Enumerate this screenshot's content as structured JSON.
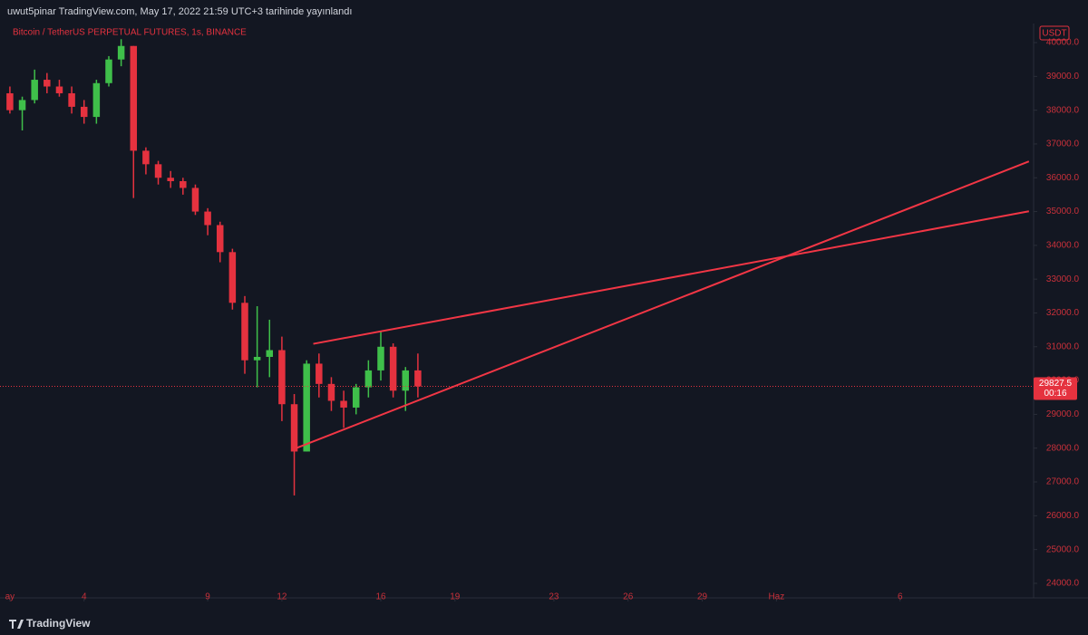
{
  "header": {
    "title": "uwut5pinar TradingView.com, May 17, 2022 21:59 UTC+3 tarihinde yayınlandı"
  },
  "footer": {
    "brand": "TradingView"
  },
  "chart_data": {
    "type": "candlestick",
    "title": "Bitcoin / TetherUS PERPETUAL FUTURES, 1s, BINANCE",
    "currency": "USDT",
    "countdown": "00:16",
    "x": [
      1,
      1.5,
      2,
      2.5,
      3,
      3.5,
      4,
      4.5,
      5,
      5.5,
      6,
      6.5,
      7,
      7.5,
      8,
      8.5,
      9,
      9.5,
      10,
      10.5,
      11,
      11.5,
      12,
      12.5,
      13,
      13.5,
      14,
      14.5,
      15,
      15.5,
      16,
      16.5,
      17,
      17.5
    ],
    "open": [
      38500,
      38000,
      38300,
      38900,
      38700,
      38500,
      38100,
      37800,
      38800,
      39500,
      39900,
      36800,
      36400,
      36000,
      35900,
      35700,
      35000,
      34600,
      33800,
      32300,
      30600,
      30700,
      30900,
      29300,
      27900,
      30500,
      29900,
      29400,
      29200,
      29800,
      30300,
      31000,
      29700,
      30300
    ],
    "high": [
      38700,
      38400,
      39200,
      39100,
      38900,
      38700,
      38300,
      38900,
      39600,
      40100,
      39900,
      36900,
      36500,
      36200,
      36000,
      35800,
      35100,
      34700,
      33900,
      32500,
      32200,
      31800,
      31300,
      29600,
      30600,
      30800,
      30100,
      29700,
      29900,
      30600,
      31450,
      31100,
      30400,
      30800
    ],
    "low": [
      37900,
      37400,
      38200,
      38500,
      38400,
      37900,
      37600,
      37600,
      38700,
      39300,
      35400,
      36100,
      35800,
      35700,
      35500,
      34900,
      34300,
      33500,
      32100,
      30200,
      29800,
      30100,
      28800,
      26600,
      27900,
      29500,
      29100,
      28600,
      29000,
      29500,
      30000,
      29500,
      29100,
      29500
    ],
    "close": [
      38000,
      38300,
      38900,
      38700,
      38500,
      38100,
      37800,
      38800,
      39500,
      39900,
      36800,
      36400,
      36000,
      35900,
      35700,
      35000,
      34600,
      33800,
      32300,
      30600,
      30700,
      30900,
      29300,
      27900,
      30500,
      29900,
      29400,
      29200,
      29800,
      30300,
      31000,
      29700,
      30300,
      29827.5
    ],
    "up_color": "#3fbf4a",
    "down_color": "#e5323f",
    "trendlines": [
      {
        "x": [
          13.27,
          42.21
        ],
        "y": [
          31087,
          35007
        ],
        "color": "#f23645"
      },
      {
        "x": [
          12.58,
          42.21
        ],
        "y": [
          28000,
          36483
        ],
        "color": "#f23645"
      }
    ],
    "xlim": [
      0.6,
      42.4
    ],
    "xticks": [
      {
        "value": 1,
        "label": "ay"
      },
      4,
      9,
      12,
      16,
      19,
      23,
      26,
      29,
      {
        "value": 32,
        "label": "Haz"
      },
      {
        "value": 37,
        "label": "6"
      }
    ],
    "ylim": [
      23570,
      41260
    ],
    "yticks": [
      {
        "value": 24000,
        "label": "24000.0"
      },
      {
        "value": 25000,
        "label": "25000.0"
      },
      {
        "value": 26000,
        "label": "26000.0"
      },
      {
        "value": 27000,
        "label": "27000.0"
      },
      {
        "value": 28000,
        "label": "28000.0"
      },
      {
        "value": 29000,
        "label": "29000.0"
      },
      {
        "value": 30000,
        "label": "30000.0"
      },
      {
        "value": 31000,
        "label": "31000.0"
      },
      {
        "value": 32000,
        "label": "32000.0"
      },
      {
        "value": 33000,
        "label": "33000.0"
      },
      {
        "value": 34000,
        "label": "34000.0"
      },
      {
        "value": 35000,
        "label": "35000.0"
      },
      {
        "value": 36000,
        "label": "36000.0"
      },
      {
        "value": 37000,
        "label": "37000.0"
      },
      {
        "value": 38000,
        "label": "38000.0"
      },
      {
        "value": 39000,
        "label": "39000.0"
      },
      {
        "value": 40000,
        "label": "40000.0"
      }
    ]
  }
}
